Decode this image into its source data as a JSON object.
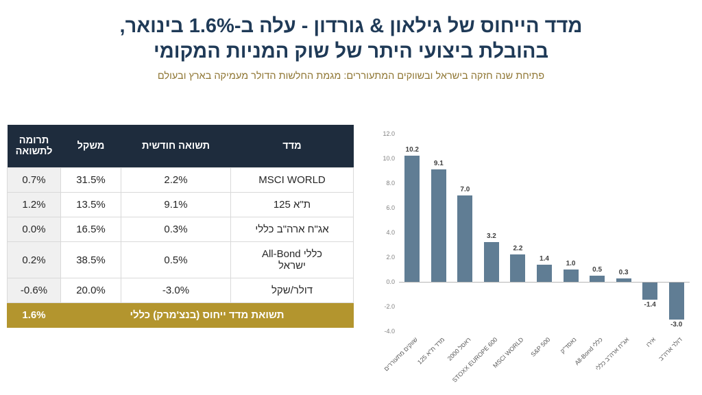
{
  "header": {
    "title_line1": "מדד הייחוס של גילאון & גורדון  - עלה ב-1.6% בינואר,",
    "title_line2": "בהובלת ביצועי היתר של שוק המניות המקומי",
    "subtitle": "פתיחת שנה חזקה בישראל ובשווקים המתעוררים: מגמת החלשות הדולר מעמיקה בארץ ובעולם"
  },
  "table": {
    "headers": [
      "תרומה לתשואה",
      "משקל",
      "תשואה חודשית",
      "מדד"
    ],
    "rows": [
      {
        "contribution": "0.7%",
        "weight": "31.5%",
        "monthly_return": "2.2%",
        "index": "MSCI WORLD"
      },
      {
        "contribution": "1.2%",
        "weight": "13.5%",
        "monthly_return": "9.1%",
        "index": "ת\"א 125"
      },
      {
        "contribution": "0.0%",
        "weight": "16.5%",
        "monthly_return": "0.3%",
        "index": "אג\"ח ארה\"ב כללי"
      },
      {
        "contribution": "0.2%",
        "weight": "38.5%",
        "monthly_return": "0.5%",
        "index": "כללי All-Bond\nישראל"
      },
      {
        "contribution": "-0.6%",
        "weight": "20.0%",
        "monthly_return": "-3.0%",
        "index": "דולר/שקל"
      }
    ],
    "footer": {
      "value": "1.6%",
      "label": "תשואת מדד ייחוס (בנצ'מרק) כללי"
    }
  },
  "chart_data": {
    "type": "bar",
    "categories": [
      "שווקים מתעוררים",
      "מדד ת\"א 125",
      "ראסל 2000",
      "STOXX EUROPE 600",
      "MSCI WORLD",
      "S&P 500",
      "נאסד\"ק",
      "כללי All-Bond",
      "אג\"ח ארה\"ב כללי",
      "אירו",
      "דולר ארה\"ב"
    ],
    "values": [
      10.2,
      9.1,
      7.0,
      3.2,
      2.2,
      1.4,
      1.0,
      0.5,
      0.3,
      -1.4,
      -3.0
    ],
    "title": "",
    "xlabel": "",
    "ylabel": "",
    "ylim": [
      -4.0,
      12.0
    ],
    "ytick_step": 2.0,
    "grid": false,
    "legend": false,
    "bar_color": "#607d94",
    "value_label_color": "#3f3f3f"
  },
  "colors": {
    "title": "#1f3a57",
    "subtitle_gold": "#8f7633",
    "table_header_bg": "#1e2c3d",
    "footer_gold": "#b3952e",
    "bar": "#607d94"
  }
}
